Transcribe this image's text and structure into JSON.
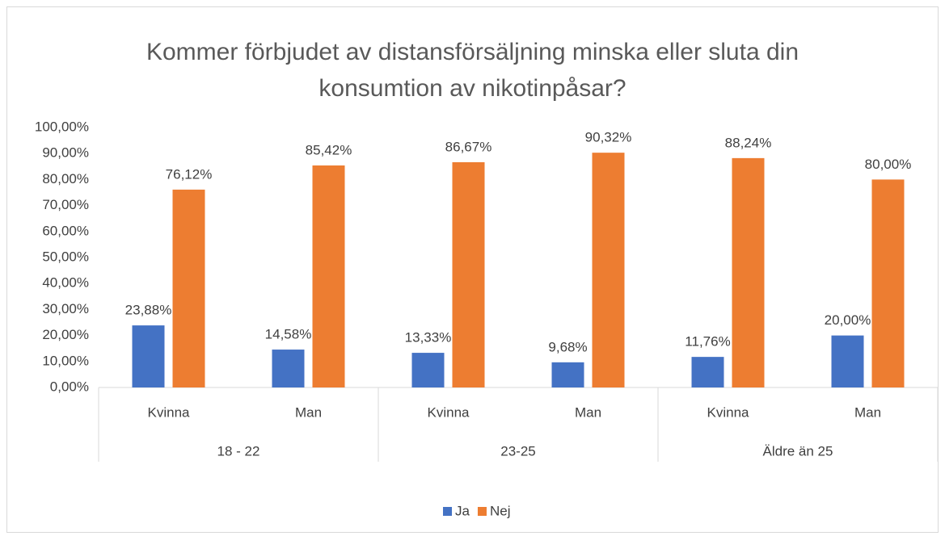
{
  "chart_data": {
    "type": "bar",
    "title": "Kommer förbjudet av distansförsäljning minska eller sluta din konsumtion av nikotinpåsar?",
    "categories": [
      "Kvinna",
      "Man",
      "Kvinna",
      "Man",
      "Kvinna",
      "Man"
    ],
    "groups": [
      "18 - 22",
      "23-25",
      "Äldre än 25"
    ],
    "series": [
      {
        "name": "Ja",
        "color": "#4472c4",
        "values": [
          23.88,
          14.58,
          13.33,
          9.68,
          11.76,
          20.0
        ],
        "value_labels": [
          "23,88%",
          "14,58%",
          "13,33%",
          "9,68%",
          "11,76%",
          "20,00%"
        ]
      },
      {
        "name": "Nej",
        "color": "#ed7d31",
        "values": [
          76.12,
          85.42,
          86.67,
          90.32,
          88.24,
          80.0
        ],
        "value_labels": [
          "76,12%",
          "85,42%",
          "86,67%",
          "90,32%",
          "88,24%",
          "80,00%"
        ]
      }
    ],
    "ylim": [
      0,
      100
    ],
    "yticks": [
      {
        "value": 0,
        "label": "0,00%"
      },
      {
        "value": 10,
        "label": "10,00%"
      },
      {
        "value": 20,
        "label": "20,00%"
      },
      {
        "value": 30,
        "label": "30,00%"
      },
      {
        "value": 40,
        "label": "40,00%"
      },
      {
        "value": 50,
        "label": "50,00%"
      },
      {
        "value": 60,
        "label": "60,00%"
      },
      {
        "value": 70,
        "label": "70,00%"
      },
      {
        "value": 80,
        "label": "80,00%"
      },
      {
        "value": 90,
        "label": "90,00%"
      },
      {
        "value": 100,
        "label": "100,00%"
      }
    ],
    "grid": false,
    "legend": "bottom"
  }
}
